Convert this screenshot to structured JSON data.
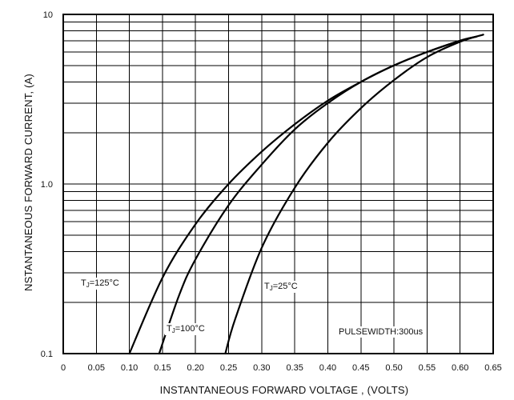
{
  "chart_data": {
    "type": "line",
    "xlabel": "INSTANTANEOUS FORWARD VOLTAGE , (VOLTS)",
    "ylabel": "NSTANTANEOUS  FORWARD CURRENT, (A)",
    "xlim": [
      0,
      0.65
    ],
    "ylim": [
      0.1,
      10
    ],
    "y_scale": "log",
    "grid": true,
    "x_ticks": [
      "0",
      "0.05",
      "0.10",
      "0.15",
      "0.20",
      "0.25",
      "0.30",
      "0.35",
      "0.40",
      "0.45",
      "0.50",
      "0.55",
      "0.60",
      "0.65"
    ],
    "y_ticks": [
      "0.1",
      "1.0",
      "10"
    ],
    "annotations": [
      {
        "text": "TJ=125°C",
        "series": "TJ=125°C"
      },
      {
        "text": "TJ=100°C",
        "series": "TJ=100°C"
      },
      {
        "text": "TJ=25°C",
        "series": "TJ=25°C"
      },
      {
        "text": "PULSEWIDTH:300us"
      }
    ],
    "series": [
      {
        "name": "TJ=125°C",
        "x": [
          0.1,
          0.15,
          0.2,
          0.25,
          0.3,
          0.35,
          0.4,
          0.45,
          0.5,
          0.55,
          0.6,
          0.625
        ],
        "y": [
          0.1,
          0.28,
          0.58,
          1.0,
          1.55,
          2.25,
          3.1,
          4.0,
          5.0,
          6.0,
          7.0,
          7.4
        ]
      },
      {
        "name": "TJ=100°C",
        "x": [
          0.145,
          0.175,
          0.2,
          0.25,
          0.3,
          0.35,
          0.4,
          0.45,
          0.5,
          0.55,
          0.6,
          0.625
        ],
        "y": [
          0.1,
          0.22,
          0.36,
          0.75,
          1.3,
          2.1,
          3.0,
          4.0,
          5.0,
          6.0,
          7.0,
          7.4
        ]
      },
      {
        "name": "TJ=25°C",
        "x": [
          0.245,
          0.26,
          0.3,
          0.35,
          0.4,
          0.45,
          0.5,
          0.55,
          0.6,
          0.635
        ],
        "y": [
          0.1,
          0.16,
          0.42,
          0.95,
          1.75,
          2.8,
          4.1,
          5.6,
          6.9,
          7.6
        ]
      }
    ]
  }
}
